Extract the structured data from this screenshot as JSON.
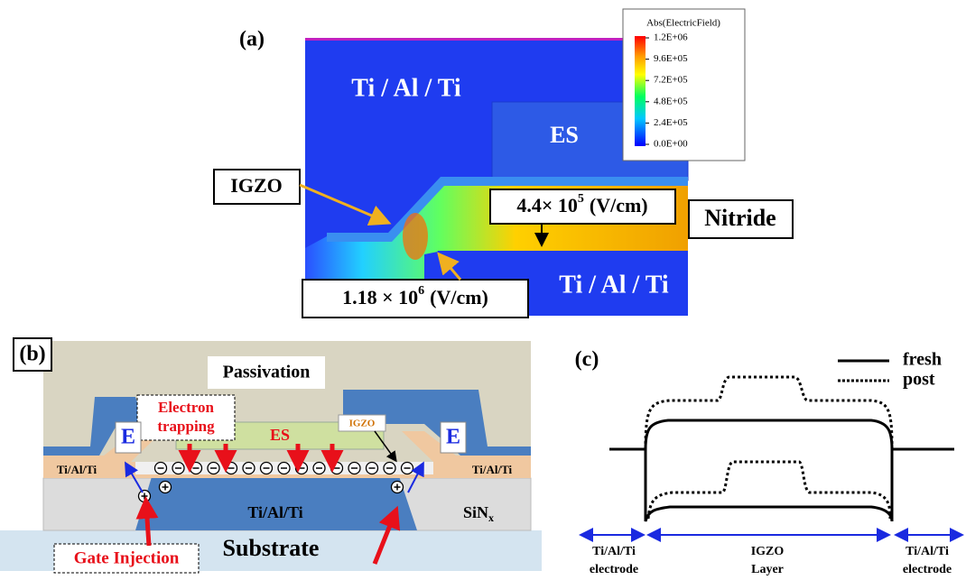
{
  "panel_a": {
    "label": "(a)",
    "top_electrode": "Ti / Al / Ti",
    "es": "ES",
    "igzo": "IGZO",
    "nitride_field": {
      "base": "4.4× 10",
      "exp": "5",
      "unit": "(V/cm)"
    },
    "nitride": "Nitride",
    "peak_field": {
      "base": "1.18 × 10",
      "exp": "6",
      "unit": "(V/cm)"
    },
    "bottom_electrode": "Ti / Al / Ti",
    "colorbar": {
      "title": "Abs(ElectricField)",
      "ticks": [
        "1.2E+06",
        "9.6E+05",
        "7.2E+05",
        "4.8E+05",
        "2.4E+05",
        "0.0E+00"
      ]
    }
  },
  "panel_b": {
    "label": "(b)",
    "passivation": "Passivation",
    "electron_trapping": [
      "Electron",
      "trapping"
    ],
    "es": "ES",
    "igzo": "IGZO",
    "field_left": "E",
    "field_right": "E",
    "electrode_left": "Ti/Al/Ti",
    "electrode_right": "Ti/Al/Ti",
    "gate": "Ti/Al/Ti",
    "sinx": {
      "base": "SiN",
      "sub": "x"
    },
    "substrate": "Substrate",
    "gate_injection": "Gate Injection"
  },
  "panel_c": {
    "label": "(c)",
    "legend": [
      "fresh",
      "post"
    ],
    "regions": [
      {
        "line1": "Ti/Al/Ti",
        "line2": "electrode"
      },
      {
        "line1": "IGZO",
        "line2": "Layer"
      },
      {
        "line1": "Ti/Al/Ti",
        "line2": "electrode"
      }
    ]
  }
}
